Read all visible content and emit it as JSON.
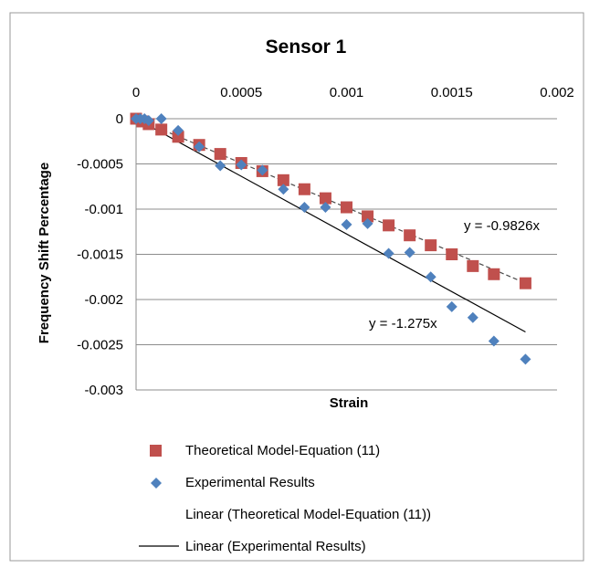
{
  "chart_data": {
    "type": "scatter",
    "title": "Sensor 1",
    "xlabel": "Strain",
    "ylabel": "Frequency Shift Percentage",
    "xlim": [
      0,
      0.002
    ],
    "ylim": [
      -0.003,
      0
    ],
    "x_ticks": [
      "0",
      "0.0005",
      "0.001",
      "0.0015",
      "0.002"
    ],
    "y_ticks": [
      "0",
      "-0.0005",
      "-0.001",
      "-0.0015",
      "-0.002",
      "-0.0025",
      "-0.003"
    ],
    "grid": "horizontal",
    "x_axis_position": "top",
    "legend_position": "bottom",
    "series": [
      {
        "name": "Theoretical Model-Equation (11)",
        "marker": "square",
        "color": "#c0504d",
        "x": [
          0,
          3e-05,
          6e-05,
          0.00012,
          0.0002,
          0.0003,
          0.0004,
          0.0005,
          0.0006,
          0.0007,
          0.0008,
          0.0009,
          0.001,
          0.0011,
          0.0012,
          0.0013,
          0.0014,
          0.0015,
          0.0016,
          0.0017,
          0.00185
        ],
        "y": [
          0,
          -3e-05,
          -6e-05,
          -0.00012,
          -0.0002,
          -0.00029,
          -0.00039,
          -0.00049,
          -0.00058,
          -0.00068,
          -0.00078,
          -0.00088,
          -0.00098,
          -0.00108,
          -0.00118,
          -0.00129,
          -0.0014,
          -0.0015,
          -0.00163,
          -0.00172,
          -0.00182
        ]
      },
      {
        "name": "Experimental Results",
        "marker": "diamond",
        "color": "#4f81bd",
        "x": [
          0,
          2e-05,
          4e-05,
          6e-05,
          0.00012,
          0.0002,
          0.0003,
          0.0004,
          0.0005,
          0.0006,
          0.0007,
          0.0008,
          0.0009,
          0.001,
          0.0011,
          0.0012,
          0.0013,
          0.0014,
          0.0015,
          0.0016,
          0.0017,
          0.00185
        ],
        "y": [
          0,
          0,
          0,
          -2e-05,
          0,
          -0.00013,
          -0.00031,
          -0.00052,
          -0.00051,
          -0.00057,
          -0.00078,
          -0.00098,
          -0.00098,
          -0.00117,
          -0.00116,
          -0.00149,
          -0.00148,
          -0.00175,
          -0.00208,
          -0.0022,
          -0.00246,
          -0.00266
        ]
      }
    ],
    "trendlines": [
      {
        "name": "Linear (Theoretical Model-Equation (11))",
        "slope": -0.9826,
        "label": "y = -0.9826x",
        "style": "dashed",
        "color": "#4a4a4a"
      },
      {
        "name": "Linear (Experimental Results)",
        "slope": -1.275,
        "label": "y = -1.275x",
        "style": "solid",
        "color": "#000000"
      }
    ],
    "trendline_x_end": 0.00185
  }
}
